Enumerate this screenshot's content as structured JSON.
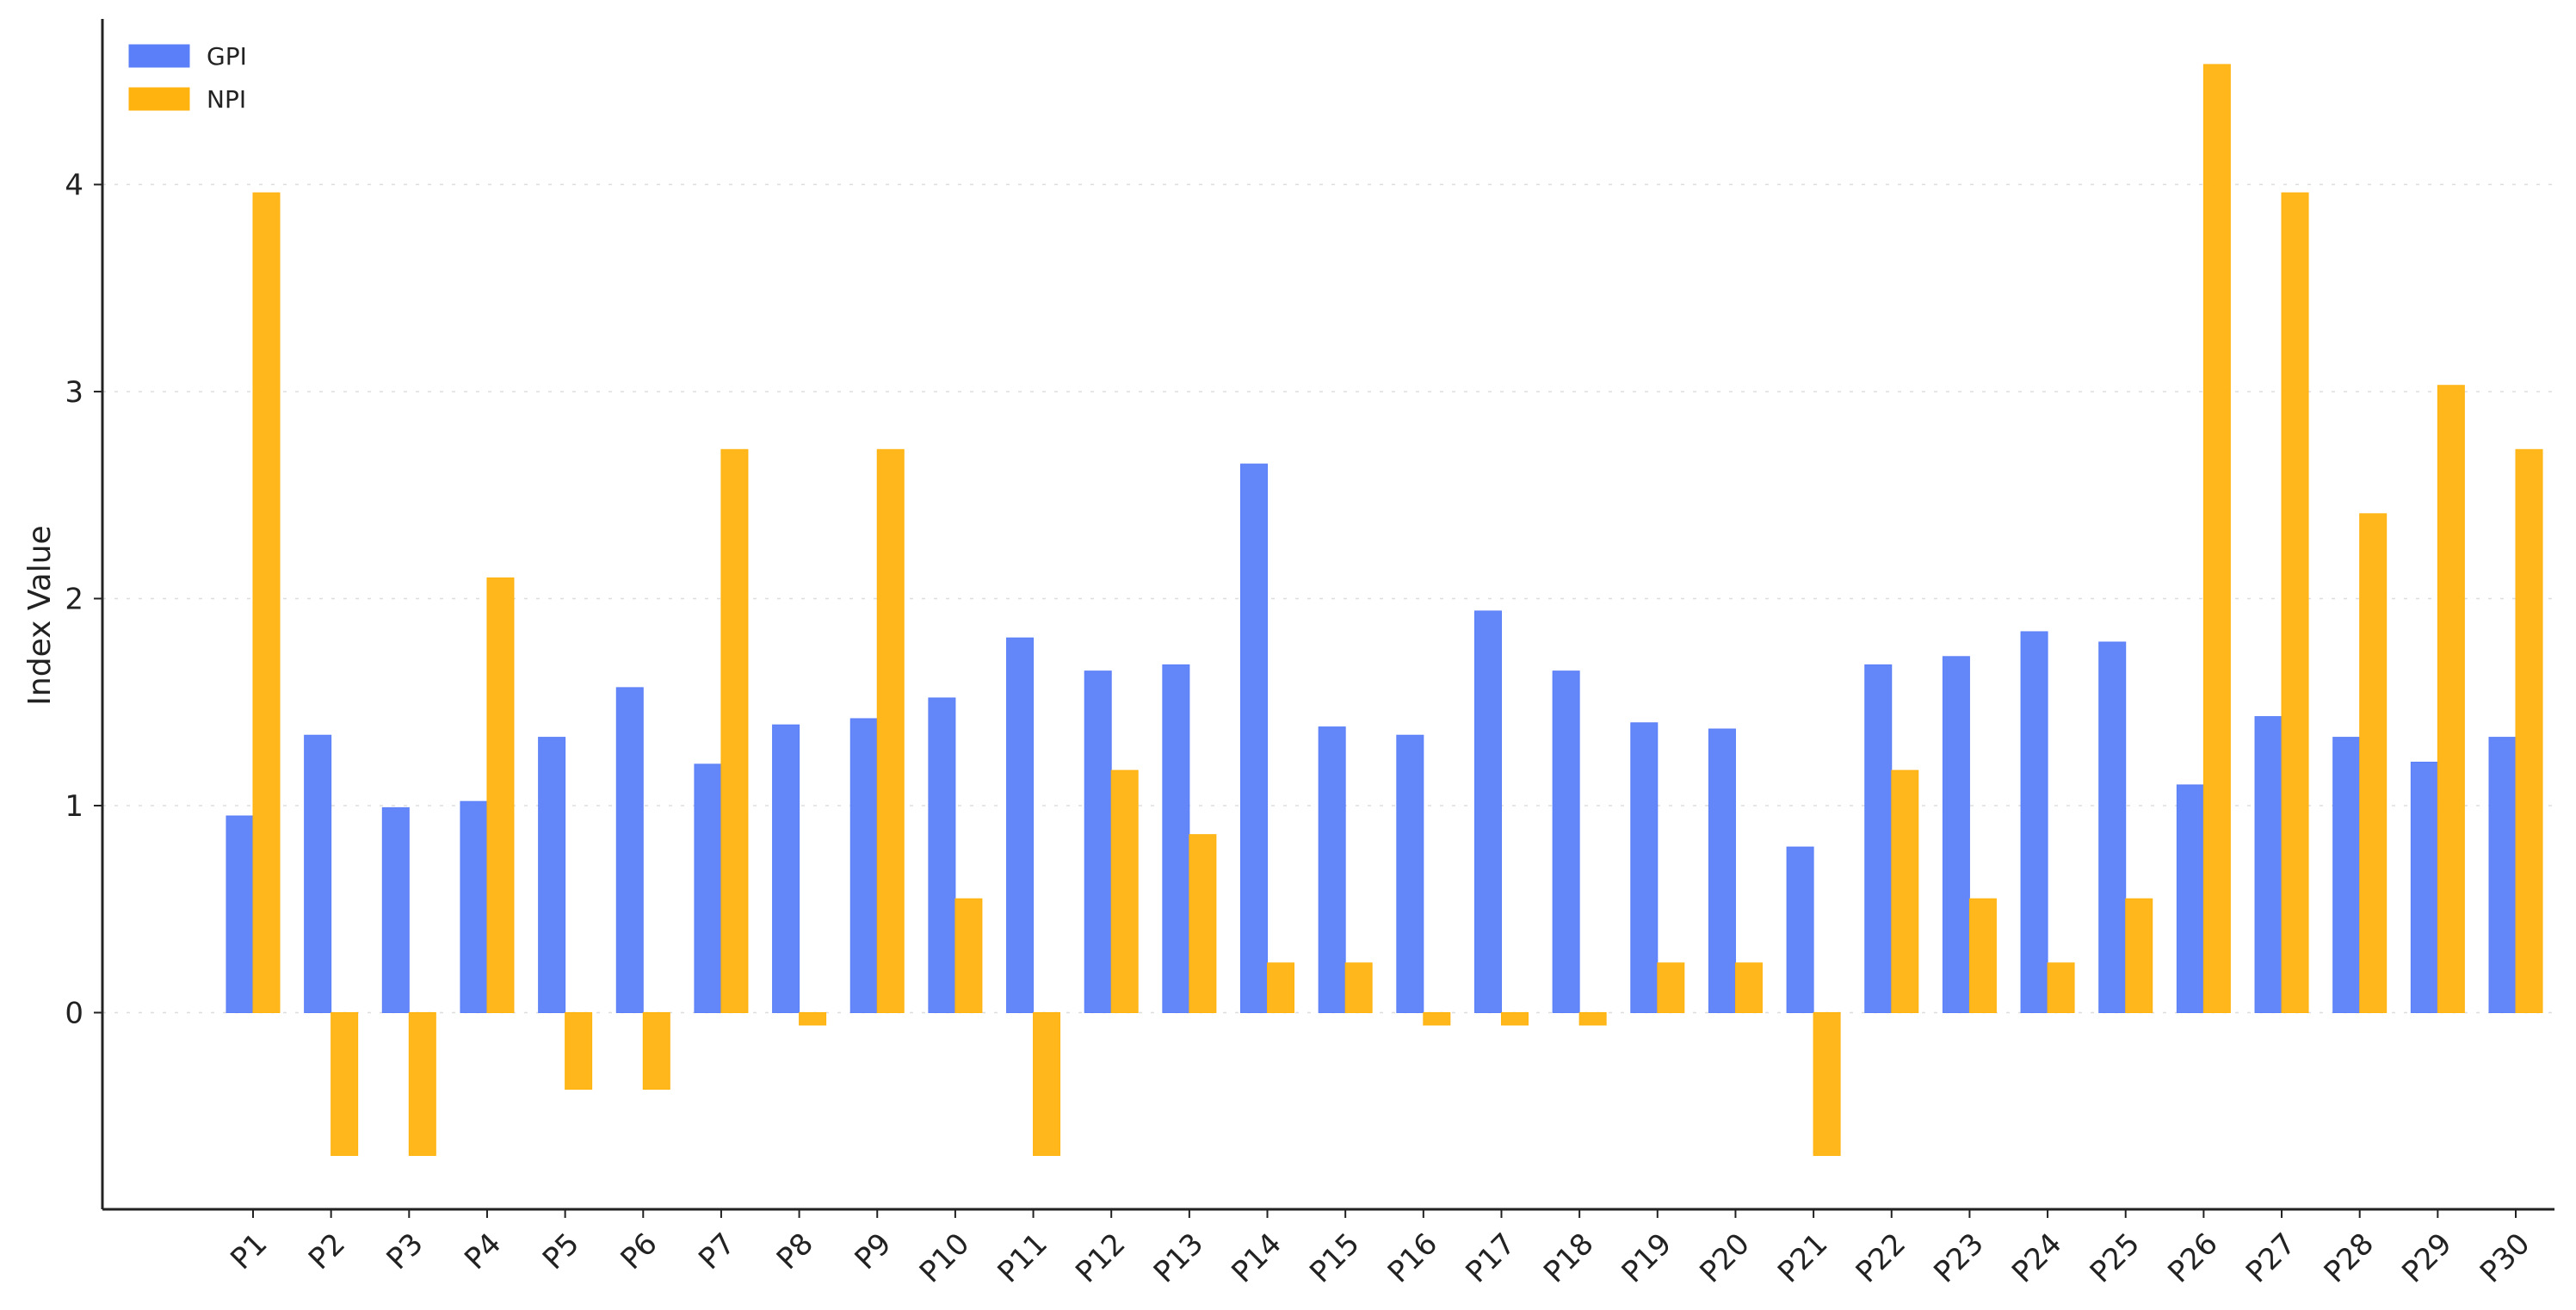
{
  "chart_data": {
    "type": "bar",
    "title": "",
    "xlabel": "",
    "ylabel": "Index Value",
    "ylim": [
      -0.95,
      4.8
    ],
    "yticks": [
      0,
      1,
      2,
      3,
      4
    ],
    "grid": true,
    "legend_position": "top-left",
    "categories": [
      "P1",
      "P2",
      "P3",
      "P4",
      "P5",
      "P6",
      "P7",
      "P8",
      "P9",
      "P10",
      "P11",
      "P12",
      "P13",
      "P14",
      "P15",
      "P16",
      "P17",
      "P18",
      "P19",
      "P20",
      "P21",
      "P22",
      "P23",
      "P24",
      "P25",
      "P26",
      "P27",
      "P28",
      "P29",
      "P30"
    ],
    "series": [
      {
        "name": "GPI",
        "color": "#5b7ff8",
        "values": [
          0.95,
          1.34,
          0.99,
          1.02,
          1.33,
          1.57,
          1.2,
          1.39,
          1.42,
          1.52,
          1.81,
          1.65,
          1.68,
          2.65,
          1.38,
          1.34,
          1.94,
          1.65,
          1.4,
          1.37,
          0.8,
          1.68,
          1.72,
          1.84,
          1.79,
          1.1,
          1.43,
          1.33,
          1.21,
          1.33
        ]
      },
      {
        "name": "NPI",
        "color": "#ffb30f",
        "values": [
          3.96,
          -0.69,
          -0.69,
          2.1,
          -0.37,
          -0.37,
          2.72,
          -0.06,
          2.72,
          0.55,
          -0.69,
          1.17,
          0.86,
          0.24,
          0.24,
          -0.06,
          -0.06,
          -0.06,
          0.24,
          0.24,
          -0.69,
          1.17,
          0.55,
          0.24,
          0.55,
          4.58,
          3.96,
          2.41,
          3.03,
          2.72
        ]
      }
    ]
  }
}
